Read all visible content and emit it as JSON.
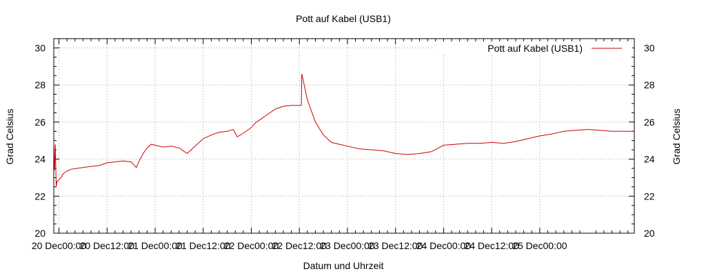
{
  "chart_data": {
    "type": "line",
    "title": "Pott auf Kabel (USB1)",
    "xlabel": "Datum und Uhrzeit",
    "ylabel_left": "Grad Celsius",
    "ylabel_right": "Grad Celsius",
    "ylim": [
      20,
      30.5
    ],
    "y_ticks": [
      "20",
      "22",
      "24",
      "26",
      "28",
      "30"
    ],
    "x_tick_labels": [
      "20 Dec00:00",
      "20 Dec12:00",
      "21 Dec00:00",
      "21 Dec12:00",
      "22 Dec00:00",
      "22 Dec12:00",
      "23 Dec00:00",
      "23 Dec12:00",
      "24 Dec00:00",
      "24 Dec12:00",
      "25 Dec00:00"
    ],
    "x_unit": "hours since 20 Dec 00:00",
    "xlim": [
      -1.3,
      143.6
    ],
    "grid": true,
    "legend_position": "top-right",
    "series": [
      {
        "name": "Pott auf Kabel (USB1)",
        "color": "#cc0000",
        "x": [
          -1.3,
          -1.1,
          -0.9,
          -0.7,
          -0.5,
          -0.3,
          0.0,
          0.5,
          1.0,
          2.0,
          3.0,
          4.5,
          6.0,
          8.0,
          10.0,
          12.0,
          14.0,
          16.0,
          18.0,
          19.3,
          20.0,
          21.0,
          22.0,
          23.0,
          24.0,
          26.0,
          28.0,
          30.0,
          32.0,
          34.0,
          36.0,
          38.0,
          40.0,
          42.0,
          43.5,
          44.5,
          46.0,
          48.0,
          49.0,
          50.0,
          52.0,
          54.0,
          56.0,
          58.0,
          59.5,
          60.5,
          60.6,
          61.2,
          62.0,
          63.0,
          64.0,
          66.0,
          68.0,
          70.0,
          72.0,
          75.0,
          78.0,
          81.0,
          84.0,
          87.0,
          90.0,
          93.0,
          96.0,
          99.0,
          102.0,
          105.0,
          108.0,
          111.0,
          114.0,
          117.0,
          120.0,
          123.0,
          126.0,
          129.0,
          132.0,
          135.0,
          138.0,
          140.0,
          142.0,
          143.6
        ],
        "y": [
          25.0,
          23.4,
          24.8,
          22.5,
          22.8,
          22.8,
          22.9,
          23.0,
          23.2,
          23.35,
          23.45,
          23.5,
          23.55,
          23.6,
          23.65,
          23.8,
          23.85,
          23.9,
          23.85,
          23.55,
          23.9,
          24.3,
          24.6,
          24.8,
          24.75,
          24.65,
          24.7,
          24.6,
          24.3,
          24.7,
          25.1,
          25.3,
          25.45,
          25.5,
          25.6,
          25.2,
          25.4,
          25.7,
          25.95,
          26.1,
          26.4,
          26.7,
          26.85,
          26.9,
          26.9,
          26.9,
          28.6,
          28.0,
          27.2,
          26.6,
          26.0,
          25.3,
          24.9,
          24.8,
          24.7,
          24.55,
          24.5,
          24.45,
          24.3,
          24.25,
          24.3,
          24.4,
          24.75,
          24.8,
          24.85,
          24.85,
          24.9,
          24.85,
          24.95,
          25.1,
          25.25,
          25.35,
          25.5,
          25.55,
          25.6,
          25.55,
          25.5,
          25.5,
          25.5,
          25.5
        ]
      }
    ]
  }
}
